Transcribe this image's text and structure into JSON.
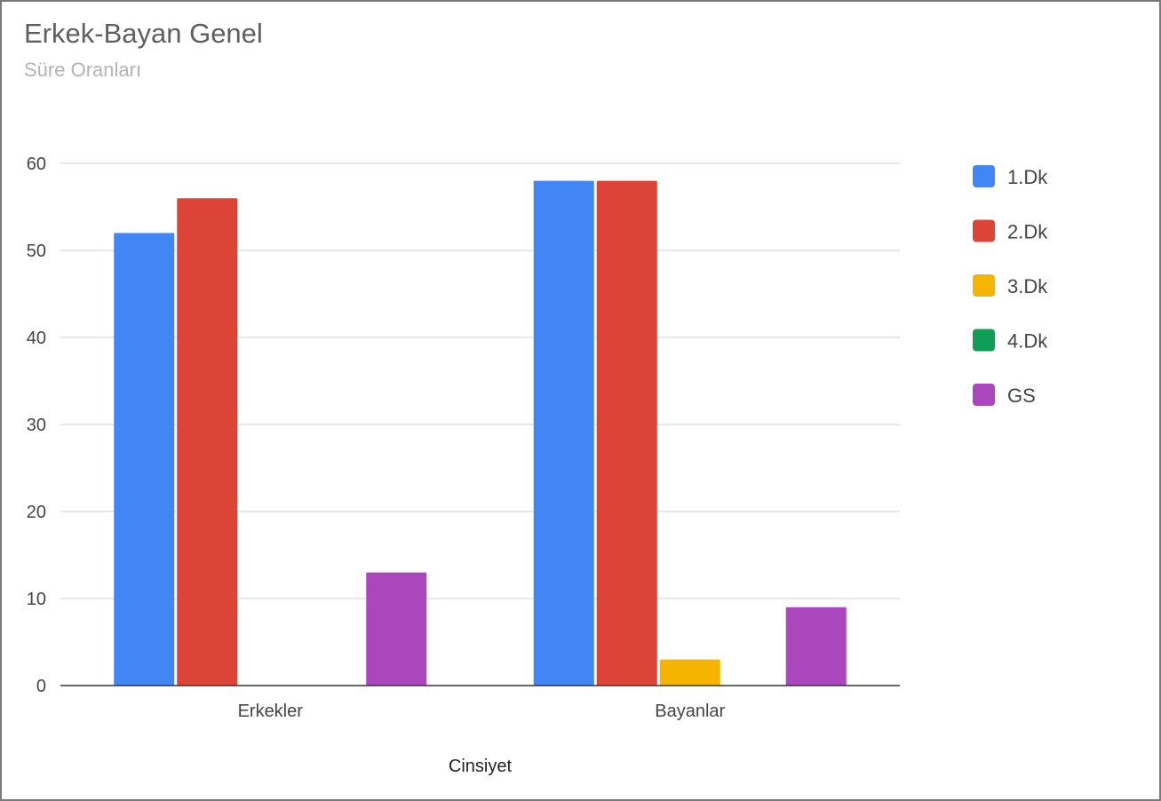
{
  "chart_data": {
    "type": "bar",
    "title": "Erkek-Bayan Genel",
    "subtitle": "Süre Oranları",
    "xlabel": "Cinsiyet",
    "ylabel": "",
    "categories": [
      "Erkekler",
      "Bayanlar"
    ],
    "series": [
      {
        "name": "1.Dk",
        "color": "#4285f4",
        "values": [
          52,
          58
        ]
      },
      {
        "name": "2.Dk",
        "color": "#db4437",
        "values": [
          56,
          58
        ]
      },
      {
        "name": "3.Dk",
        "color": "#f4b400",
        "values": [
          0,
          3
        ]
      },
      {
        "name": "4.Dk",
        "color": "#0f9d58",
        "values": [
          0,
          0
        ]
      },
      {
        "name": "GS",
        "color": "#ab47bc",
        "values": [
          13,
          9
        ]
      }
    ],
    "ylim": [
      0,
      60
    ],
    "yticks": [
      0,
      10,
      20,
      30,
      40,
      50,
      60
    ],
    "grid": true,
    "legend_position": "right"
  }
}
